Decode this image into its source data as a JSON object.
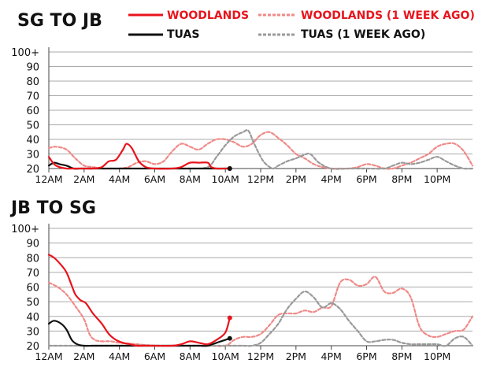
{
  "legend": {
    "woodlands": "WOODLANDS",
    "woodlands_week": "WOODLANDS (1 WEEK AGO)",
    "tuas": "TUAS",
    "tuas_week": "TUAS (1 WEEK AGO)"
  },
  "colors": {
    "woodlands": "#e8141c",
    "woodlands_week": "#f08a88",
    "tuas": "#111111",
    "tuas_week": "#999999",
    "grid": "#aaaaaa"
  },
  "chart_data": [
    {
      "type": "line",
      "title": "SG TO JB",
      "xlabel": "",
      "ylabel": "",
      "x_unit": "hours since midnight",
      "xlim": [
        0,
        24
      ],
      "ylim": [
        20,
        100
      ],
      "y_ticks": [
        "20",
        "30",
        "40",
        "50",
        "60",
        "70",
        "80",
        "90",
        "100+"
      ],
      "x_ticks": [
        "12AM",
        "2AM",
        "4AM",
        "6AM",
        "8AM",
        "10AM",
        "12PM",
        "2PM",
        "4PM",
        "6PM",
        "8PM",
        "10PM"
      ],
      "series": [
        {
          "name": "WOODLANDS",
          "style": "solid",
          "color_key": "woodlands",
          "x": [
            0,
            0.3,
            0.6,
            1,
            1.5,
            2,
            2.5,
            3,
            3.4,
            3.8,
            4.2,
            4.4,
            4.7,
            5.1,
            5.5,
            6,
            7,
            7.5,
            8,
            8.5,
            9,
            9.2,
            9.5,
            10,
            10.25
          ],
          "y": [
            28,
            23,
            21,
            20,
            20,
            20,
            20,
            21,
            25,
            26,
            33,
            37,
            34,
            25,
            21,
            20,
            20,
            21,
            24,
            24,
            24,
            21,
            20,
            20,
            20
          ]
        },
        {
          "name": "TUAS",
          "style": "solid",
          "color_key": "tuas",
          "x": [
            0,
            0.3,
            0.6,
            1,
            1.4,
            1.8,
            2.5,
            3,
            4,
            5,
            6,
            7,
            8,
            9,
            10,
            10.25
          ],
          "y": [
            22,
            24,
            23,
            22,
            20,
            20,
            20,
            20,
            20,
            20,
            20,
            20,
            20,
            20,
            20,
            20
          ]
        },
        {
          "name": "WOODLANDS (1 WEEK AGO)",
          "style": "dashed",
          "color_key": "woodlands_week",
          "x": [
            0,
            0.4,
            1,
            1.5,
            2,
            2.5,
            3,
            3.5,
            4,
            4.5,
            5,
            5.5,
            6,
            6.5,
            7,
            7.5,
            8,
            8.5,
            9,
            9.5,
            10,
            10.5,
            11,
            11.5,
            12,
            12.5,
            13,
            13.5,
            14,
            14.5,
            15,
            15.5,
            16,
            16.5,
            17,
            17.5,
            18,
            18.5,
            19,
            19.5,
            20,
            20.5,
            21,
            21.5,
            22,
            22.5,
            23,
            23.5,
            24
          ],
          "y": [
            34,
            35,
            33,
            27,
            22,
            21,
            20,
            20,
            20,
            21,
            24,
            25,
            23,
            25,
            32,
            37,
            35,
            33,
            37,
            40,
            40,
            38,
            35,
            37,
            43,
            45,
            41,
            36,
            30,
            27,
            23,
            21,
            20,
            20,
            20,
            21,
            23,
            22,
            20,
            20,
            22,
            24,
            27,
            30,
            35,
            37,
            37,
            32,
            22
          ]
        },
        {
          "name": "TUAS (1 WEEK AGO)",
          "style": "dashed",
          "color_key": "tuas_week",
          "x": [
            7,
            8,
            9,
            9.5,
            10,
            10.5,
            11,
            11.3,
            11.6,
            12,
            12.3,
            12.7,
            13,
            13.5,
            14,
            14.4,
            14.8,
            15.3,
            16,
            17,
            18,
            19,
            19.5,
            20,
            20.5,
            21,
            21.5,
            22,
            22.5,
            23,
            23.5,
            24
          ],
          "y": [
            20,
            20,
            21,
            28,
            36,
            42,
            45,
            46,
            38,
            28,
            23,
            20,
            22,
            25,
            27,
            29,
            30,
            24,
            20,
            20,
            20,
            20,
            22,
            24,
            23,
            24,
            26,
            28,
            25,
            22,
            20,
            20
          ]
        }
      ],
      "end_markers": [
        {
          "series": "WOODLANDS",
          "x": 10.25,
          "y": 20
        },
        {
          "series": "TUAS",
          "x": 10.25,
          "y": 20
        }
      ]
    },
    {
      "type": "line",
      "title": "JB TO SG",
      "xlabel": "",
      "ylabel": "",
      "x_unit": "hours since midnight",
      "xlim": [
        0,
        24
      ],
      "ylim": [
        20,
        100
      ],
      "y_ticks": [
        "20",
        "30",
        "40",
        "50",
        "60",
        "70",
        "80",
        "90",
        "100+"
      ],
      "x_ticks": [
        "12AM",
        "2AM",
        "4AM",
        "6AM",
        "8AM",
        "10AM",
        "12PM",
        "2PM",
        "4PM",
        "6PM",
        "8PM",
        "10PM"
      ],
      "series": [
        {
          "name": "WOODLANDS",
          "style": "solid",
          "color_key": "woodlands",
          "x": [
            0,
            0.3,
            0.7,
            1,
            1.3,
            1.5,
            1.8,
            2.1,
            2.5,
            3,
            3.4,
            3.8,
            4.2,
            4.6,
            5,
            5.5,
            6,
            7,
            7.5,
            8,
            8.5,
            9,
            9.5,
            10,
            10.25
          ],
          "y": [
            82,
            80,
            75,
            70,
            61,
            55,
            51,
            49,
            42,
            35,
            28,
            24,
            22,
            21,
            20,
            20,
            20,
            20,
            21,
            23,
            22,
            21,
            24,
            29,
            39
          ]
        },
        {
          "name": "TUAS",
          "style": "solid",
          "color_key": "tuas",
          "x": [
            0,
            0.3,
            0.7,
            1,
            1.3,
            1.6,
            2,
            2.5,
            3,
            4,
            5,
            6,
            7,
            8,
            8.5,
            9,
            9.5,
            10,
            10.25
          ],
          "y": [
            35,
            37,
            35,
            31,
            24,
            21,
            20,
            20,
            20,
            20,
            20,
            20,
            20,
            20,
            20,
            20,
            22,
            24,
            25
          ]
        },
        {
          "name": "WOODLANDS (1 WEEK AGO)",
          "style": "dashed",
          "color_key": "woodlands_week",
          "x": [
            0,
            0.5,
            1,
            1.5,
            2,
            2.3,
            2.6,
            3,
            3.5,
            4,
            5,
            6,
            7,
            8,
            9,
            10,
            10.5,
            11,
            11.5,
            12,
            12.5,
            13,
            13.5,
            14,
            14.5,
            15,
            15.5,
            16,
            16.5,
            17,
            17.5,
            18,
            18.5,
            19,
            19.5,
            20,
            20.5,
            21,
            21.5,
            22,
            22.5,
            23,
            23.5,
            24
          ],
          "y": [
            63,
            60,
            55,
            47,
            38,
            28,
            24,
            23,
            23,
            22,
            21,
            20,
            20,
            20,
            20,
            20,
            24,
            26,
            26,
            28,
            34,
            41,
            42,
            42,
            44,
            43,
            46,
            47,
            63,
            65,
            61,
            62,
            67,
            57,
            56,
            59,
            53,
            33,
            27,
            26,
            28,
            30,
            31,
            40
          ]
        },
        {
          "name": "TUAS (1 WEEK AGO)",
          "style": "dashed",
          "color_key": "tuas_week",
          "x": [
            0,
            1,
            2,
            3,
            4,
            5,
            6,
            7,
            8,
            9,
            10,
            11,
            11.5,
            12,
            12.5,
            13,
            13.5,
            14,
            14.5,
            15,
            15.5,
            16,
            16.5,
            17,
            17.5,
            18,
            18.5,
            19,
            19.5,
            20,
            20.5,
            21,
            21.5,
            22,
            22.5,
            23,
            23.5,
            24
          ],
          "y": [
            20,
            20,
            20,
            20,
            20,
            20,
            20,
            20,
            20,
            20,
            20,
            20,
            20,
            22,
            28,
            35,
            45,
            52,
            57,
            53,
            46,
            49,
            45,
            37,
            30,
            23,
            23,
            24,
            24,
            22,
            21,
            21,
            21,
            21,
            20,
            25,
            26,
            20
          ]
        }
      ],
      "end_markers": [
        {
          "series": "WOODLANDS",
          "x": 10.25,
          "y": 39
        },
        {
          "series": "TUAS",
          "x": 10.25,
          "y": 25
        }
      ]
    }
  ]
}
